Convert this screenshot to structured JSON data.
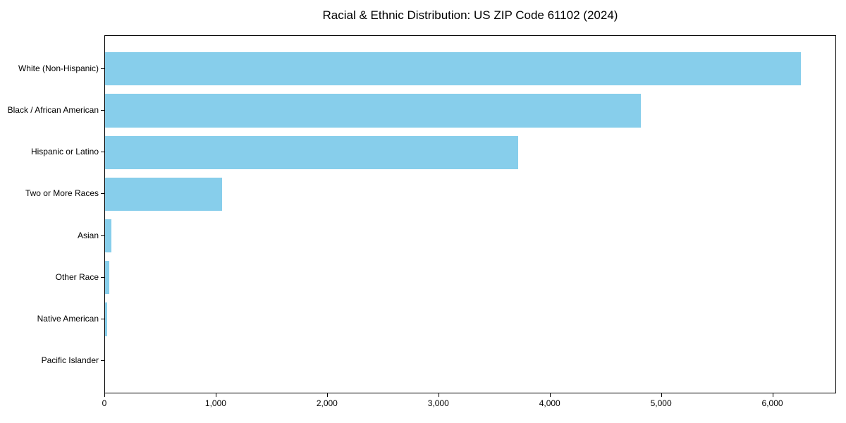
{
  "chart_data": {
    "type": "bar",
    "orientation": "horizontal",
    "title": "Racial & Ethnic Distribution: US ZIP Code 61102 (2024)",
    "categories": [
      "White (Non-Hispanic)",
      "Black / African American",
      "Hispanic or Latino",
      "Two or More Races",
      "Asian",
      "Other Race",
      "Native American",
      "Pacific Islander"
    ],
    "values": [
      6250,
      4810,
      3710,
      1050,
      60,
      35,
      20,
      0
    ],
    "xlabel": "",
    "ylabel": "",
    "xlim": [
      0,
      6560
    ],
    "xticks": [
      0,
      1000,
      2000,
      3000,
      4000,
      5000,
      6000
    ],
    "xtick_labels": [
      "0",
      "1,000",
      "2,000",
      "3,000",
      "4,000",
      "5,000",
      "6,000"
    ],
    "bar_color": "#87CEEB",
    "background_color": "#ffffff",
    "text_color": "#000000",
    "grid": false,
    "legend": null
  }
}
